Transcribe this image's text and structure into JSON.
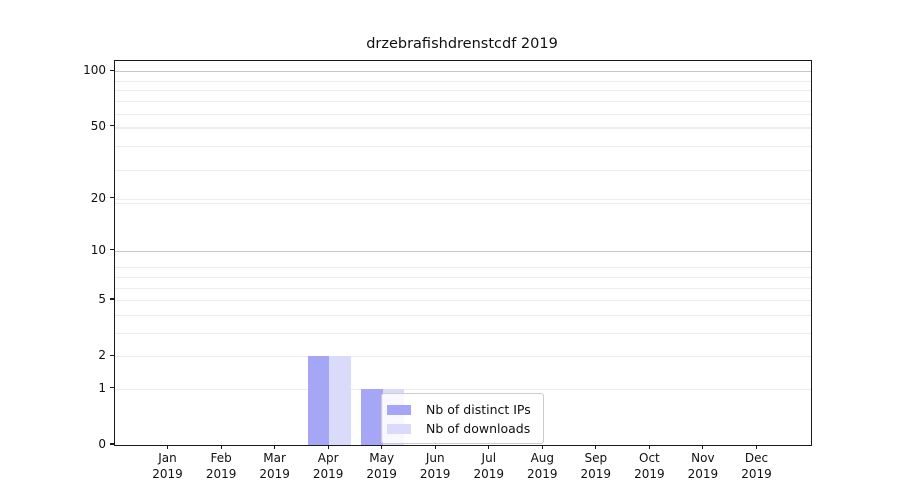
{
  "chart_data": {
    "type": "bar",
    "title": "drzebrafishdrenstcdf 2019",
    "categories": [
      "Jan 2019",
      "Feb 2019",
      "Mar 2019",
      "Apr 2019",
      "May 2019",
      "Jun 2019",
      "Jul 2019",
      "Aug 2019",
      "Sep 2019",
      "Oct 2019",
      "Nov 2019",
      "Dec 2019"
    ],
    "series": [
      {
        "name": "Nb of distinct IPs",
        "color": "#a6a6f7",
        "values": [
          0,
          0,
          0,
          2,
          1,
          0,
          0,
          0,
          0,
          0,
          0,
          0
        ]
      },
      {
        "name": "Nb of downloads",
        "color": "#dadafb",
        "values": [
          0,
          0,
          0,
          2,
          1,
          0,
          0,
          0,
          0,
          0,
          0,
          0
        ]
      }
    ],
    "xlabel": "",
    "ylabel": "",
    "yscale": "log1p",
    "y_ticks": [
      0,
      1,
      2,
      5,
      10,
      20,
      50,
      100
    ],
    "y_tick_labels": [
      "0",
      "1",
      "2",
      "5",
      "10",
      "20",
      "50",
      "100"
    ],
    "ylim": [
      0,
      113
    ],
    "grid": "horizontal major+minor",
    "grid_major_at": [
      10,
      100
    ],
    "grid_major_color": "#c6c6c6",
    "grid_minor_color": "#ececec",
    "legend": {
      "position": "inside lower-center",
      "items": [
        "Nb of distinct IPs",
        "Nb of downloads"
      ]
    }
  }
}
